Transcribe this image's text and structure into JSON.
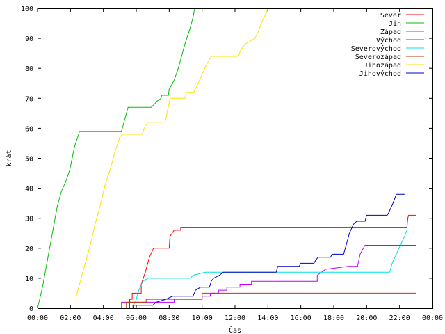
{
  "chart_data": {
    "type": "line",
    "title": "",
    "xlabel": "Čas",
    "ylabel": "krát",
    "xlim": [
      0,
      24
    ],
    "ylim": [
      0,
      100
    ],
    "x_ticks": [
      "00:00",
      "02:00",
      "04:00",
      "06:00",
      "08:00",
      "10:00",
      "12:00",
      "14:00",
      "16:00",
      "18:00",
      "20:00",
      "22:00",
      "00:00"
    ],
    "y_ticks": [
      "0",
      "10",
      "20",
      "30",
      "40",
      "50",
      "60",
      "70",
      "80",
      "90",
      "100"
    ],
    "grid": false,
    "legend_position": "top-right",
    "series": [
      {
        "name": "Sever",
        "color": "#ff0000",
        "points": [
          [
            5.45,
            0
          ],
          [
            5.6,
            0
          ],
          [
            5.6,
            3
          ],
          [
            5.75,
            3
          ],
          [
            5.75,
            5
          ],
          [
            6.3,
            5
          ],
          [
            6.3,
            8
          ],
          [
            6.55,
            12
          ],
          [
            6.8,
            17
          ],
          [
            7.05,
            20
          ],
          [
            8.0,
            20
          ],
          [
            8.05,
            24
          ],
          [
            8.3,
            26
          ],
          [
            8.7,
            26
          ],
          [
            8.7,
            27
          ],
          [
            22.45,
            27
          ],
          [
            22.5,
            30
          ],
          [
            22.55,
            31
          ],
          [
            23.0,
            31
          ]
        ]
      },
      {
        "name": "Jih",
        "color": "#00c000",
        "points": [
          [
            0.0,
            0
          ],
          [
            0.3,
            7
          ],
          [
            0.6,
            16
          ],
          [
            0.9,
            25
          ],
          [
            1.2,
            34
          ],
          [
            1.45,
            39
          ],
          [
            1.7,
            42
          ],
          [
            1.95,
            46
          ],
          [
            2.25,
            54
          ],
          [
            2.5,
            58
          ],
          [
            2.55,
            59
          ],
          [
            5.1,
            59
          ],
          [
            5.2,
            61
          ],
          [
            5.35,
            64
          ],
          [
            5.5,
            67
          ],
          [
            6.9,
            67
          ],
          [
            7.1,
            68
          ],
          [
            7.25,
            69
          ],
          [
            7.5,
            70
          ],
          [
            7.55,
            71
          ],
          [
            7.95,
            71
          ],
          [
            8.0,
            73
          ],
          [
            8.3,
            76
          ],
          [
            8.55,
            80
          ],
          [
            8.75,
            84
          ],
          [
            8.95,
            88
          ],
          [
            9.25,
            93
          ],
          [
            9.45,
            97
          ],
          [
            9.55,
            100
          ]
        ]
      },
      {
        "name": "Západ",
        "color": "#0080ff",
        "points": []
      },
      {
        "name": "Východ",
        "color": "#c000ff",
        "points": [
          [
            5.1,
            0
          ],
          [
            5.1,
            2
          ],
          [
            8.3,
            2
          ],
          [
            8.3,
            3
          ],
          [
            10.0,
            3
          ],
          [
            10.0,
            4
          ],
          [
            10.5,
            4
          ],
          [
            10.5,
            5
          ],
          [
            11.0,
            5
          ],
          [
            11.0,
            6
          ],
          [
            11.5,
            6
          ],
          [
            11.5,
            7
          ],
          [
            12.3,
            7
          ],
          [
            12.3,
            8
          ],
          [
            13.0,
            8
          ],
          [
            13.0,
            9
          ],
          [
            17.0,
            9
          ],
          [
            17.0,
            11
          ],
          [
            17.5,
            13
          ],
          [
            18.9,
            14
          ],
          [
            19.45,
            14
          ],
          [
            19.6,
            18
          ],
          [
            19.9,
            21
          ],
          [
            23.0,
            21
          ]
        ]
      },
      {
        "name": "Severovýchod",
        "color": "#00e0e0",
        "points": [
          [
            5.8,
            0
          ],
          [
            5.8,
            1
          ],
          [
            5.95,
            2
          ],
          [
            6.15,
            6
          ],
          [
            6.4,
            9
          ],
          [
            6.7,
            10
          ],
          [
            9.3,
            10
          ],
          [
            9.45,
            11
          ],
          [
            10.2,
            12
          ],
          [
            21.4,
            12
          ],
          [
            21.55,
            15
          ],
          [
            21.8,
            18
          ],
          [
            22.05,
            21
          ],
          [
            22.3,
            24
          ],
          [
            22.45,
            26
          ]
        ]
      },
      {
        "name": "Severozápad",
        "color": "#b04000",
        "points": [
          [
            5.4,
            0
          ],
          [
            5.4,
            2
          ],
          [
            6.6,
            2
          ],
          [
            6.6,
            3
          ],
          [
            10.0,
            3
          ],
          [
            10.0,
            5
          ],
          [
            23.0,
            5
          ]
        ]
      },
      {
        "name": "Jihozápad",
        "color": "#ffe000",
        "points": [
          [
            2.35,
            0
          ],
          [
            2.35,
            4
          ],
          [
            2.6,
            9
          ],
          [
            2.9,
            15
          ],
          [
            3.2,
            21
          ],
          [
            3.5,
            28
          ],
          [
            3.8,
            34
          ],
          [
            4.1,
            41
          ],
          [
            4.4,
            46
          ],
          [
            4.7,
            52
          ],
          [
            5.0,
            57
          ],
          [
            5.15,
            58
          ],
          [
            6.35,
            58
          ],
          [
            6.55,
            61
          ],
          [
            6.7,
            62
          ],
          [
            7.75,
            62
          ],
          [
            7.9,
            66
          ],
          [
            8.05,
            70
          ],
          [
            8.95,
            70
          ],
          [
            9.05,
            72
          ],
          [
            9.5,
            72
          ],
          [
            9.75,
            75
          ],
          [
            10.0,
            78
          ],
          [
            10.25,
            81
          ],
          [
            10.55,
            84
          ],
          [
            12.2,
            84
          ],
          [
            12.35,
            86
          ],
          [
            12.6,
            88
          ],
          [
            12.9,
            89
          ],
          [
            13.2,
            90
          ],
          [
            13.4,
            92
          ],
          [
            13.6,
            95
          ],
          [
            13.85,
            98
          ],
          [
            14.0,
            100
          ]
        ]
      },
      {
        "name": "Jihovýchod",
        "color": "#0000c0",
        "points": [
          [
            5.8,
            0
          ],
          [
            5.8,
            1
          ],
          [
            7.0,
            1
          ],
          [
            7.2,
            2
          ],
          [
            7.8,
            3
          ],
          [
            8.2,
            4
          ],
          [
            9.45,
            4
          ],
          [
            9.6,
            6
          ],
          [
            9.9,
            7
          ],
          [
            10.45,
            7
          ],
          [
            10.55,
            9
          ],
          [
            10.7,
            10
          ],
          [
            11.05,
            11
          ],
          [
            11.3,
            12
          ],
          [
            14.5,
            12
          ],
          [
            14.6,
            14
          ],
          [
            15.9,
            14
          ],
          [
            16.0,
            15
          ],
          [
            16.8,
            15
          ],
          [
            16.9,
            16
          ],
          [
            17.05,
            17
          ],
          [
            17.8,
            17
          ],
          [
            17.9,
            18
          ],
          [
            18.6,
            18
          ],
          [
            18.75,
            21
          ],
          [
            18.95,
            25
          ],
          [
            19.2,
            28
          ],
          [
            19.4,
            29
          ],
          [
            19.9,
            29
          ],
          [
            20.0,
            31
          ],
          [
            21.25,
            31
          ],
          [
            21.35,
            32
          ],
          [
            21.6,
            35
          ],
          [
            21.8,
            38
          ],
          [
            22.3,
            38
          ]
        ]
      }
    ]
  }
}
